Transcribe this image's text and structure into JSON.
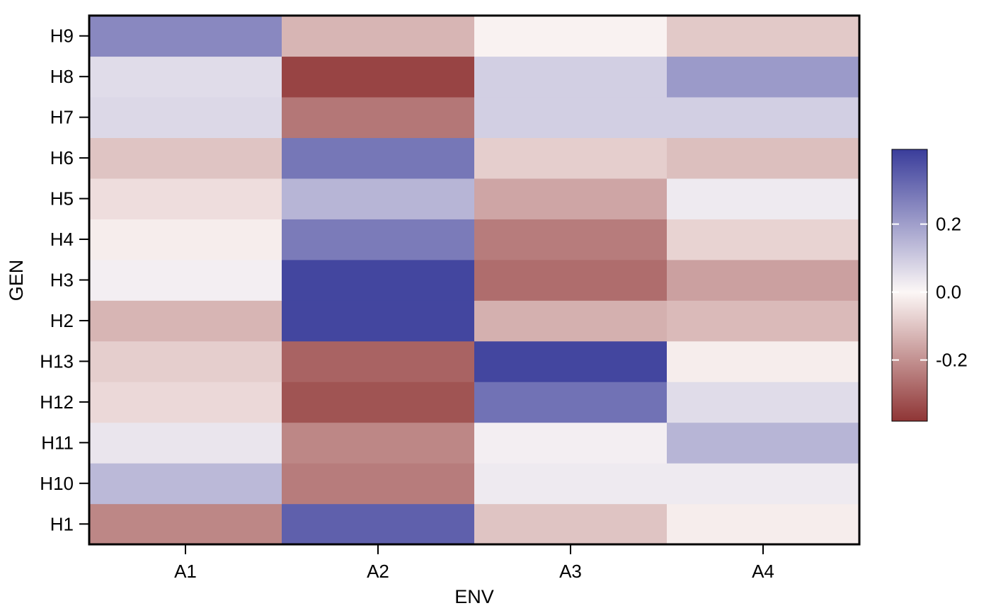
{
  "chart_data": {
    "type": "heatmap",
    "title": "",
    "xlabel": "ENV",
    "ylabel": "GEN",
    "x_categories": [
      "A1",
      "A2",
      "A3",
      "A4"
    ],
    "y_categories": [
      "H1",
      "H10",
      "H11",
      "H12",
      "H13",
      "H2",
      "H3",
      "H4",
      "H5",
      "H6",
      "H7",
      "H8",
      "H9"
    ],
    "values": [
      [
        -0.22,
        0.34,
        -0.1,
        -0.02
      ],
      [
        0.14,
        -0.24,
        0.03,
        0.03
      ],
      [
        0.04,
        -0.22,
        0.02,
        0.15
      ],
      [
        -0.06,
        -0.32,
        0.3,
        0.06
      ],
      [
        -0.08,
        -0.29,
        0.4,
        -0.02
      ],
      [
        -0.13,
        0.4,
        -0.14,
        -0.12
      ],
      [
        0.02,
        0.4,
        -0.27,
        -0.17
      ],
      [
        -0.02,
        0.28,
        -0.24,
        -0.07
      ],
      [
        -0.05,
        0.15,
        -0.16,
        0.03
      ],
      [
        -0.1,
        0.29,
        -0.08,
        -0.11
      ],
      [
        0.07,
        -0.25,
        0.09,
        0.09
      ],
      [
        0.06,
        -0.35,
        0.09,
        0.21
      ],
      [
        0.25,
        -0.13,
        -0.01,
        -0.09
      ]
    ],
    "colorbar": {
      "min": -0.38,
      "max": 0.42,
      "ticks": [
        -0.2,
        0.0,
        0.2
      ],
      "tick_labels": [
        "-0.2",
        "0.0",
        "0.2"
      ],
      "low_color": "#8f3535",
      "mid_color": "#fcf7f6",
      "high_color": "#3a3d9b"
    },
    "legend_position": "right",
    "grid": false
  }
}
